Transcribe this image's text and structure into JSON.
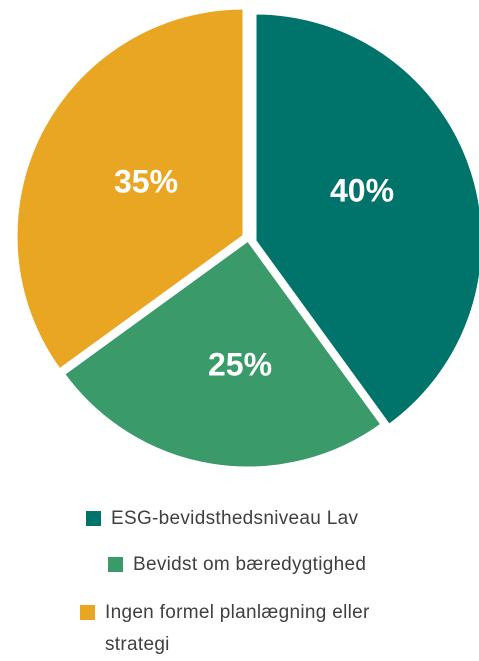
{
  "chart_data": {
    "type": "pie",
    "slices": [
      {
        "label": "ESG-bevidsthedsniveau Lav",
        "value": 40,
        "display": "40%",
        "color": "#00746B"
      },
      {
        "label": "Bevidst om bæredygtighed",
        "value": 25,
        "display": "25%",
        "color": "#3A9A69"
      },
      {
        "label": "Ingen formel planlægning eller strategi",
        "value": 35,
        "display": "35%",
        "color": "#E9A623"
      }
    ],
    "legend_position": "bottom",
    "start_angle": "12 o'clock",
    "direction": "clockwise"
  },
  "legend": {
    "items": [
      {
        "label": "ESG-bevidsthedsniveau Lav",
        "color": "#00746B"
      },
      {
        "label": "Bevidst om bæredygtighed",
        "color": "#3A9A69"
      },
      {
        "label": "Ingen formel planlægning eller strategi",
        "color": "#E9A623"
      }
    ]
  }
}
